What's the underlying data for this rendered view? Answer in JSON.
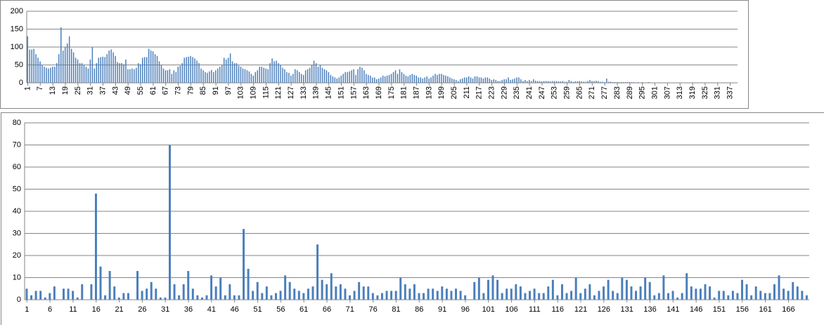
{
  "chart_data": [
    {
      "type": "bar",
      "color": "#4a7ebb",
      "grid": true,
      "ylim": [
        0,
        200
      ],
      "yticks": [
        0,
        50,
        100,
        150,
        200
      ],
      "categories": [
        "1",
        null,
        null,
        null,
        null,
        null,
        "7",
        null,
        null,
        null,
        null,
        null,
        "13",
        null,
        null,
        null,
        null,
        null,
        "19",
        null,
        null,
        null,
        null,
        null,
        "25",
        null,
        null,
        null,
        null,
        null,
        "31",
        null,
        null,
        null,
        null,
        null,
        "37",
        null,
        null,
        null,
        null,
        null,
        "43",
        null,
        null,
        null,
        null,
        null,
        "49",
        null,
        null,
        null,
        null,
        null,
        "55",
        null,
        null,
        null,
        null,
        null,
        "61",
        null,
        null,
        null,
        null,
        null,
        "67",
        null,
        null,
        null,
        null,
        null,
        "73",
        null,
        null,
        null,
        null,
        null,
        "79",
        null,
        null,
        null,
        null,
        null,
        "85",
        null,
        null,
        null,
        null,
        null,
        "91",
        null,
        null,
        null,
        null,
        null,
        "97",
        null,
        null,
        null,
        null,
        null,
        "103",
        null,
        null,
        null,
        null,
        null,
        "109",
        null,
        null,
        null,
        null,
        null,
        "115",
        null,
        null,
        null,
        null,
        null,
        "121",
        null,
        null,
        null,
        null,
        null,
        "127",
        null,
        null,
        null,
        null,
        null,
        "133",
        null,
        null,
        null,
        null,
        null,
        "139",
        null,
        null,
        null,
        null,
        null,
        "145",
        null,
        null,
        null,
        null,
        null,
        "151",
        null,
        null,
        null,
        null,
        null,
        "157",
        null,
        null,
        null,
        null,
        null,
        "163",
        null,
        null,
        null,
        null,
        null,
        "169",
        null,
        null,
        null,
        null,
        null,
        "175",
        null,
        null,
        null,
        null,
        null,
        "181",
        null,
        null,
        null,
        null,
        null,
        "187",
        null,
        null,
        null,
        null,
        null,
        "193",
        null,
        null,
        null,
        null,
        null,
        "199",
        null,
        null,
        null,
        null,
        null,
        "205",
        null,
        null,
        null,
        null,
        null,
        "211",
        null,
        null,
        null,
        null,
        null,
        "217",
        null,
        null,
        null,
        null,
        null,
        "223",
        null,
        null,
        null,
        null,
        null,
        "229",
        null,
        null,
        null,
        null,
        null,
        "235",
        null,
        null,
        null,
        null,
        null,
        "241",
        null,
        null,
        null,
        null,
        null,
        "247",
        null,
        null,
        null,
        null,
        null,
        "253",
        null,
        null,
        null,
        null,
        null,
        "259",
        null,
        null,
        null,
        null,
        null,
        "265",
        null,
        null,
        null,
        null,
        null,
        "271",
        null,
        null,
        null,
        null,
        null,
        "277",
        null,
        null,
        null,
        null,
        null,
        "283",
        null,
        null,
        null,
        null,
        null,
        "289",
        null,
        null,
        null,
        null,
        null,
        "295",
        null,
        null,
        null,
        null,
        null,
        "301",
        null,
        null,
        null,
        null,
        null,
        "307",
        null,
        null,
        null,
        null,
        null,
        "313",
        null,
        null,
        null,
        null,
        null,
        "319",
        null,
        null,
        null,
        null,
        null,
        "325",
        null,
        null,
        null,
        null,
        null,
        "331",
        null,
        null,
        null,
        null,
        null,
        "337",
        null,
        null,
        null
      ],
      "values": [
        130,
        93,
        93,
        95,
        80,
        70,
        60,
        50,
        45,
        42,
        40,
        42,
        45,
        45,
        55,
        80,
        155,
        90,
        100,
        110,
        130,
        95,
        85,
        70,
        65,
        55,
        55,
        50,
        45,
        40,
        65,
        100,
        40,
        55,
        70,
        72,
        73,
        72,
        80,
        90,
        93,
        85,
        75,
        58,
        55,
        55,
        52,
        65,
        38,
        38,
        40,
        38,
        42,
        55,
        52,
        70,
        72,
        72,
        95,
        90,
        88,
        80,
        75,
        60,
        50,
        40,
        35,
        35,
        38,
        25,
        35,
        30,
        45,
        48,
        55,
        70,
        72,
        73,
        75,
        72,
        68,
        62,
        55,
        40,
        35,
        30,
        28,
        32,
        36,
        30,
        35,
        40,
        45,
        50,
        70,
        65,
        70,
        82,
        60,
        55,
        55,
        48,
        45,
        40,
        38,
        35,
        32,
        25,
        20,
        30,
        35,
        45,
        45,
        42,
        40,
        38,
        55,
        68,
        60,
        62,
        55,
        50,
        42,
        38,
        30,
        28,
        20,
        25,
        38,
        35,
        30,
        25,
        22,
        35,
        38,
        42,
        50,
        62,
        55,
        45,
        50,
        42,
        38,
        35,
        30,
        22,
        18,
        15,
        12,
        15,
        20,
        25,
        30,
        30,
        32,
        35,
        38,
        22,
        38,
        45,
        42,
        35,
        25,
        22,
        20,
        15,
        15,
        10,
        12,
        15,
        20,
        18,
        20,
        22,
        25,
        30,
        35,
        25,
        38,
        30,
        25,
        20,
        18,
        22,
        25,
        22,
        20,
        15,
        15,
        12,
        15,
        18,
        12,
        15,
        20,
        25,
        22,
        25,
        25,
        22,
        20,
        18,
        15,
        12,
        10,
        8,
        5,
        10,
        12,
        15,
        15,
        18,
        15,
        12,
        18,
        18,
        15,
        15,
        12,
        15,
        15,
        12,
        8,
        10,
        8,
        5,
        5,
        8,
        10,
        10,
        15,
        8,
        10,
        12,
        15,
        15,
        10,
        5,
        8,
        5,
        8,
        5,
        10,
        6,
        5,
        5,
        4,
        5,
        5,
        5,
        4,
        5,
        5,
        5,
        4,
        4,
        5,
        3,
        3,
        8,
        5,
        3,
        4,
        4,
        5,
        4,
        3,
        3,
        5,
        8,
        5,
        5,
        6,
        5,
        3,
        3,
        2,
        12,
        3,
        3,
        2,
        2,
        2,
        2,
        2,
        2,
        2,
        2,
        2,
        2,
        2,
        1,
        2,
        1,
        2,
        1,
        1,
        2,
        1,
        1,
        1,
        1,
        1,
        1,
        1,
        1,
        1,
        1,
        1,
        1,
        1,
        1,
        1,
        1,
        1,
        1,
        1,
        1,
        1,
        1,
        1,
        1,
        1,
        1,
        1,
        1,
        1,
        1,
        1,
        1,
        1,
        1,
        1,
        1,
        1,
        1,
        1,
        1,
        1,
        1
      ]
    },
    {
      "type": "bar",
      "color": "#4a7ebb",
      "grid": true,
      "ylim": [
        0,
        80
      ],
      "yticks": [
        0,
        10,
        20,
        30,
        40,
        50,
        60,
        70,
        80
      ],
      "categories": [
        "1",
        null,
        null,
        null,
        null,
        "6",
        null,
        null,
        null,
        null,
        "11",
        null,
        null,
        null,
        null,
        "16",
        null,
        null,
        null,
        null,
        "21",
        null,
        null,
        null,
        null,
        "26",
        null,
        null,
        null,
        null,
        "31",
        null,
        null,
        null,
        null,
        "36",
        null,
        null,
        null,
        null,
        "41",
        null,
        null,
        null,
        null,
        "46",
        null,
        null,
        null,
        null,
        "51",
        null,
        null,
        null,
        null,
        "56",
        null,
        null,
        null,
        null,
        "61",
        null,
        null,
        null,
        null,
        "66",
        null,
        null,
        null,
        null,
        "71",
        null,
        null,
        null,
        null,
        "76",
        null,
        null,
        null,
        null,
        "81",
        null,
        null,
        null,
        null,
        "86",
        null,
        null,
        null,
        null,
        "91",
        null,
        null,
        null,
        null,
        "96",
        null,
        null,
        null,
        null,
        "101",
        null,
        null,
        null,
        null,
        "106",
        null,
        null,
        null,
        null,
        "111",
        null,
        null,
        null,
        null,
        "116",
        null,
        null,
        null,
        null,
        "121",
        null,
        null,
        null,
        null,
        "126",
        null,
        null,
        null,
        null,
        "131",
        null,
        null,
        null,
        null,
        "136",
        null,
        null,
        null,
        null,
        "141",
        null,
        null,
        null,
        null,
        "146",
        null,
        null,
        null,
        null,
        "151",
        null,
        null,
        null,
        null,
        "156",
        null,
        null,
        null,
        null,
        "161",
        null,
        null,
        null,
        null,
        "166",
        null,
        null,
        null,
        null
      ],
      "values": [
        5,
        2,
        4,
        4,
        1,
        3,
        6,
        0,
        5,
        5,
        4,
        1,
        7,
        0,
        7,
        48,
        15,
        2,
        13,
        6,
        1,
        3,
        3,
        0,
        13,
        4,
        5,
        8,
        5,
        1,
        1,
        70,
        7,
        2,
        7,
        13,
        5,
        2,
        1,
        2,
        11,
        6,
        10,
        2,
        7,
        2,
        2,
        32,
        14,
        4,
        8,
        3,
        6,
        2,
        3,
        4,
        11,
        8,
        5,
        4,
        3,
        5,
        6,
        25,
        9,
        7,
        12,
        6,
        7,
        5,
        2,
        4,
        8,
        6,
        6,
        3,
        2,
        3,
        4,
        4,
        4,
        10,
        7,
        5,
        7,
        3,
        3,
        5,
        5,
        4,
        6,
        5,
        4,
        5,
        4,
        2,
        0,
        8,
        10,
        3,
        9,
        11,
        9,
        3,
        5,
        5,
        7,
        6,
        3,
        4,
        5,
        3,
        3,
        6,
        9,
        2,
        7,
        3,
        4,
        10,
        3,
        5,
        7,
        2,
        4,
        6,
        9,
        4,
        3,
        10,
        9,
        6,
        4,
        6,
        10,
        8,
        2,
        3,
        11,
        3,
        4,
        1,
        3,
        12,
        6,
        5,
        5,
        7,
        6,
        1,
        4,
        4,
        2,
        4,
        3,
        9,
        7,
        2,
        6,
        4,
        3,
        3,
        7,
        11,
        5,
        4,
        8,
        6,
        4,
        2
      ]
    }
  ]
}
